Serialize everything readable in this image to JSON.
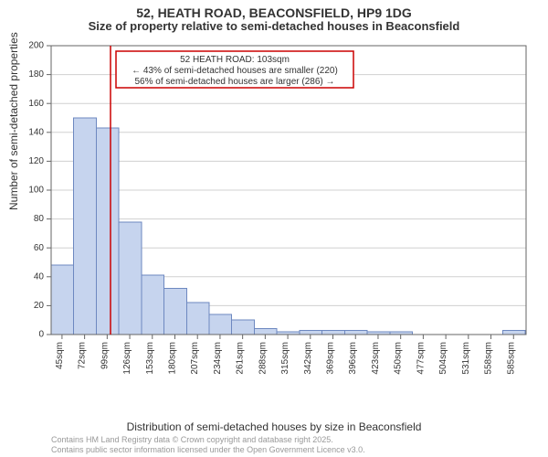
{
  "header": {
    "title": "52, HEATH ROAD, BEACONSFIELD, HP9 1DG",
    "subtitle": "Size of property relative to semi-detached houses in Beaconsfield"
  },
  "chart": {
    "type": "histogram",
    "ylabel": "Number of semi-detached properties",
    "xlabel": "Distribution of semi-detached houses by size in Beaconsfield",
    "ylim": [
      0,
      200
    ],
    "ytick_step": 20,
    "x_min": 32,
    "x_max": 600,
    "xticks_start": 45,
    "xticks_step": 27,
    "xticks_count": 21,
    "xtick_suffix": "sqm",
    "xtick_label_fontsize": 10,
    "ytick_label_fontsize": 10,
    "bin_start": 32,
    "bin_width": 27,
    "values": [
      48,
      150,
      143,
      78,
      41,
      32,
      22,
      14,
      10,
      4,
      2,
      3,
      3,
      3,
      2,
      2,
      0,
      0,
      0,
      0,
      3
    ],
    "bar_fill": "#c6d4ee",
    "bar_stroke": "#6d88c0",
    "background_color": "#ffffff",
    "grid_color": "#d0d0d0",
    "border_color": "#666666",
    "marker": {
      "value": 103,
      "color": "#cc0000"
    },
    "annotation": {
      "line1": "52 HEATH ROAD: 103sqm",
      "line2": "← 43% of semi-detached houses are smaller (220)",
      "line3": "56% of semi-detached houses are larger (286) →",
      "box_border": "#cc0000",
      "box_fill": "#ffffff"
    }
  },
  "footer": {
    "line1": "Contains HM Land Registry data © Crown copyright and database right 2025.",
    "line2": "Contains public sector information licensed under the Open Government Licence v3.0."
  }
}
